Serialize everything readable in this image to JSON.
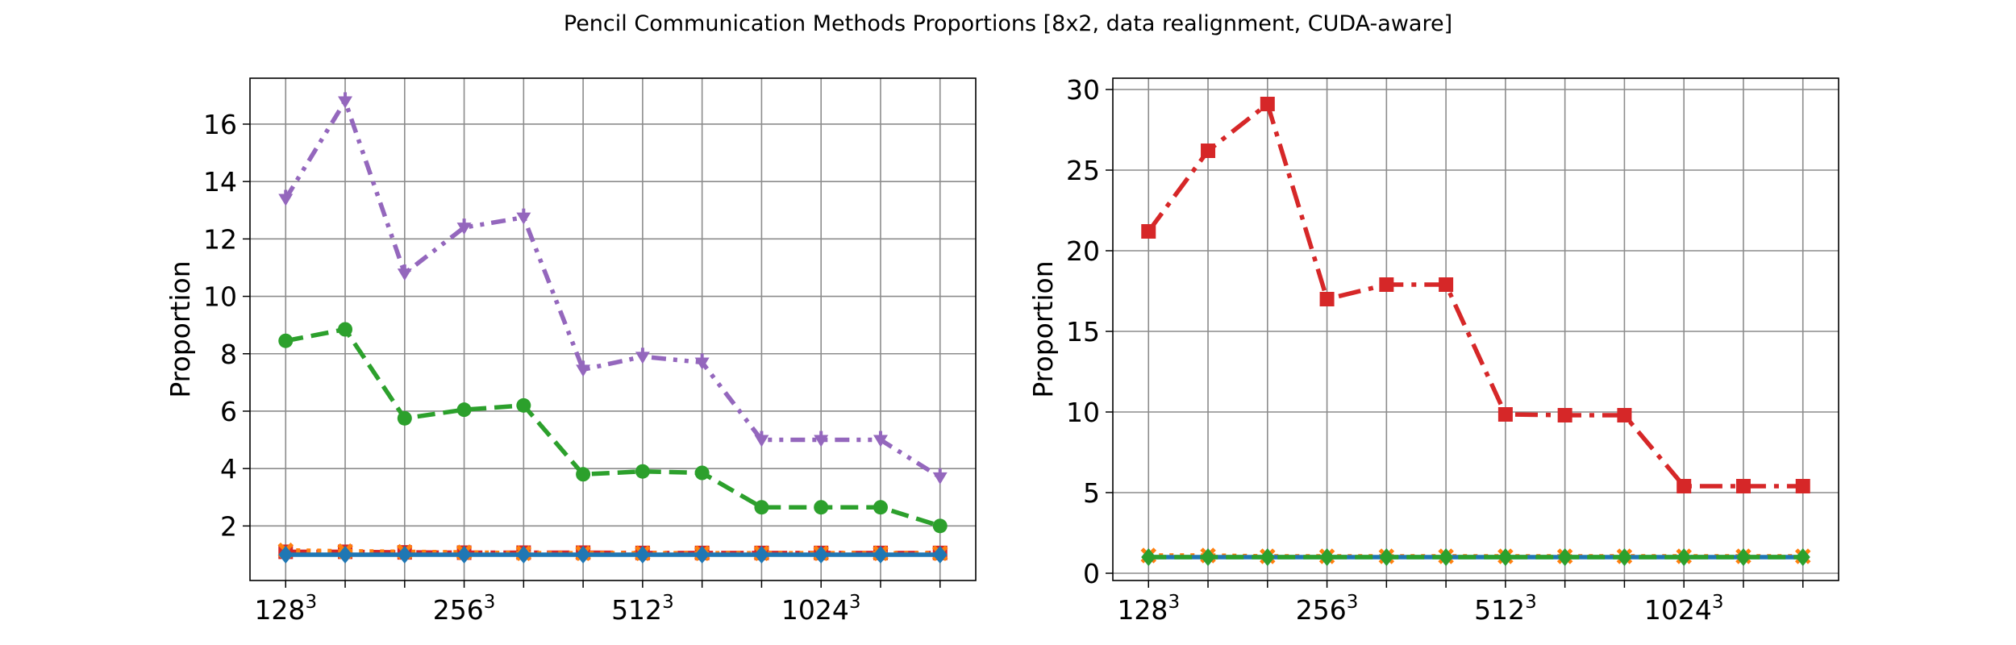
{
  "figure_title": "Pencil Communication Methods Proportions [8x2, data realignment, CUDA-aware]",
  "chart_data": [
    {
      "type": "line",
      "ylabel": "Proportion",
      "x": [
        0,
        1,
        2,
        3,
        4,
        5,
        6,
        7,
        8,
        9,
        10,
        11
      ],
      "x_tick_labels": [
        {
          "x": 0,
          "base": "128",
          "exp": "3"
        },
        {
          "x": 3,
          "base": "256",
          "exp": "3"
        },
        {
          "x": 6,
          "base": "512",
          "exp": "3"
        },
        {
          "x": 9,
          "base": "1024",
          "exp": "3"
        }
      ],
      "xlim": [
        -0.6,
        11.6
      ],
      "ylim": [
        0.1,
        17.6
      ],
      "yticks": [
        2,
        4,
        6,
        8,
        10,
        12,
        14,
        16
      ],
      "grid": true,
      "series": [
        {
          "color": "#9467bd",
          "dash": "dashdotdot",
          "marker": "tri_down",
          "values": [
            13.4,
            16.8,
            10.8,
            12.4,
            12.75,
            7.45,
            7.9,
            7.7,
            5.0,
            5.0,
            5.0,
            3.7
          ]
        },
        {
          "color": "#2ca02c",
          "dash": "dashed",
          "marker": "circle",
          "values": [
            8.45,
            8.85,
            5.75,
            6.05,
            6.2,
            3.8,
            3.9,
            3.85,
            2.65,
            2.65,
            2.65,
            2.0
          ]
        },
        {
          "color": "#d62728",
          "dash": "dashdot",
          "marker": "square",
          "values": [
            1.1,
            1.1,
            1.08,
            1.07,
            1.07,
            1.07,
            1.06,
            1.06,
            1.06,
            1.06,
            1.06,
            1.06
          ]
        },
        {
          "color": "#ff7f0e",
          "dash": "dotted",
          "marker": "x",
          "values": [
            1.15,
            1.12,
            1.1,
            1.08,
            1.05,
            1.05,
            1.05,
            1.05,
            1.05,
            1.05,
            1.05,
            1.05
          ]
        },
        {
          "color": "#1f77b4",
          "dash": "solid",
          "marker": "diamond",
          "values": [
            1.0,
            1.0,
            1.0,
            1.0,
            1.0,
            1.0,
            1.0,
            1.0,
            1.0,
            1.0,
            1.0,
            1.0
          ]
        }
      ]
    },
    {
      "type": "line",
      "ylabel": "Proportion",
      "x": [
        0,
        1,
        2,
        3,
        4,
        5,
        6,
        7,
        8,
        9,
        10,
        11
      ],
      "x_tick_labels": [
        {
          "x": 0,
          "base": "128",
          "exp": "3"
        },
        {
          "x": 3,
          "base": "256",
          "exp": "3"
        },
        {
          "x": 6,
          "base": "512",
          "exp": "3"
        },
        {
          "x": 9,
          "base": "1024",
          "exp": "3"
        }
      ],
      "xlim": [
        -0.6,
        11.6
      ],
      "ylim": [
        -0.45,
        30.7
      ],
      "yticks": [
        0,
        5,
        10,
        15,
        20,
        25,
        30
      ],
      "grid": true,
      "series": [
        {
          "color": "#d62728",
          "dash": "dashdot",
          "marker": "square",
          "values": [
            21.2,
            26.2,
            29.1,
            17.0,
            17.9,
            17.9,
            9.85,
            9.8,
            9.8,
            5.4,
            5.4,
            5.4
          ]
        },
        {
          "color": "#ff7f0e",
          "dash": "dotted",
          "marker": "x",
          "values": [
            1.1,
            1.1,
            1.05,
            1.05,
            1.05,
            1.05,
            1.05,
            1.05,
            1.05,
            1.05,
            1.05,
            1.05
          ]
        },
        {
          "color": "#1f77b4",
          "dash": "solid",
          "marker": "diamond",
          "values": [
            1.0,
            1.0,
            1.0,
            1.0,
            1.0,
            1.0,
            1.0,
            1.0,
            1.0,
            1.0,
            1.0,
            1.0
          ]
        },
        {
          "color": "#2ca02c",
          "dash": "dashed",
          "marker": "diamond",
          "values": [
            1.0,
            1.0,
            1.0,
            1.0,
            1.0,
            1.0,
            1.0,
            1.0,
            1.0,
            1.0,
            1.0,
            1.0
          ]
        }
      ]
    }
  ]
}
